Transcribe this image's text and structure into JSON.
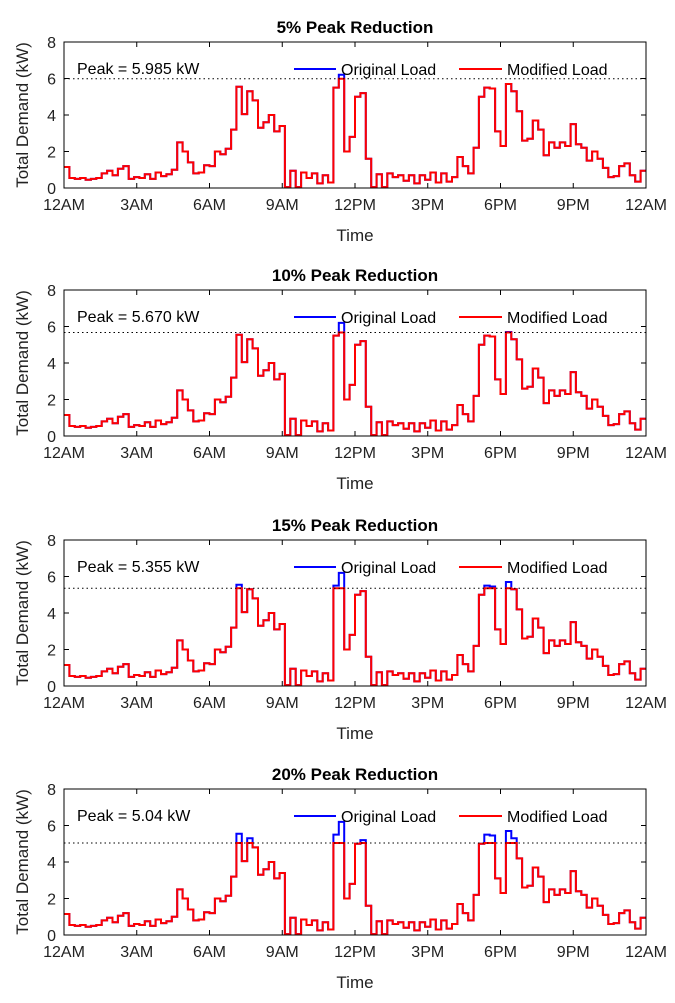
{
  "chart_data": [
    {
      "type": "line",
      "title": "5% Peak Reduction",
      "xlabel": "Time",
      "ylabel": "Total Demand (kW)",
      "xticks": [
        "12AM",
        "3AM",
        "6AM",
        "9AM",
        "12PM",
        "3PM",
        "6PM",
        "9PM",
        "12AM"
      ],
      "yticks": [
        0,
        2,
        4,
        6,
        8
      ],
      "ylim": [
        0,
        8
      ],
      "grid": false,
      "legend_position": "top-right",
      "series": [
        {
          "name": "Original Load",
          "color": "#0000ff"
        },
        {
          "name": "Modified Load",
          "color": "#ff0000"
        }
      ],
      "peak_line": 5.985,
      "annotation": "Peak = 5.985 kW"
    },
    {
      "type": "line",
      "title": "10% Peak Reduction",
      "xlabel": "Time",
      "ylabel": "Total Demand (kW)",
      "xticks": [
        "12AM",
        "3AM",
        "6AM",
        "9AM",
        "12PM",
        "3PM",
        "6PM",
        "9PM",
        "12AM"
      ],
      "yticks": [
        0,
        2,
        4,
        6,
        8
      ],
      "ylim": [
        0,
        8
      ],
      "grid": false,
      "legend_position": "top-right",
      "series": [
        {
          "name": "Original Load",
          "color": "#0000ff"
        },
        {
          "name": "Modified Load",
          "color": "#ff0000"
        }
      ],
      "peak_line": 5.67,
      "annotation": "Peak = 5.670 kW"
    },
    {
      "type": "line",
      "title": "15% Peak Reduction",
      "xlabel": "Time",
      "ylabel": "Total Demand (kW)",
      "xticks": [
        "12AM",
        "3AM",
        "6AM",
        "9AM",
        "12PM",
        "3PM",
        "6PM",
        "9PM",
        "12AM"
      ],
      "yticks": [
        0,
        2,
        4,
        6,
        8
      ],
      "ylim": [
        0,
        8
      ],
      "grid": false,
      "legend_position": "top-right",
      "series": [
        {
          "name": "Original Load",
          "color": "#0000ff"
        },
        {
          "name": "Modified Load",
          "color": "#ff0000"
        }
      ],
      "peak_line": 5.355,
      "annotation": "Peak = 5.355 kW"
    },
    {
      "type": "line",
      "title": "20% Peak Reduction",
      "xlabel": "Time",
      "ylabel": "Total Demand (kW)",
      "xticks": [
        "12AM",
        "3AM",
        "6AM",
        "9AM",
        "12PM",
        "3PM",
        "6PM",
        "9PM",
        "12AM"
      ],
      "yticks": [
        0,
        2,
        4,
        6,
        8
      ],
      "ylim": [
        0,
        8
      ],
      "grid": false,
      "legend_position": "top-right",
      "series": [
        {
          "name": "Original Load",
          "color": "#0000ff"
        },
        {
          "name": "Modified Load",
          "color": "#ff0000"
        }
      ],
      "peak_line": 5.04,
      "annotation": "Peak = 5.04 kW"
    }
  ],
  "original_load_24h_15min": [
    1.15,
    0.55,
    0.5,
    0.55,
    0.45,
    0.5,
    0.55,
    0.8,
    0.95,
    0.7,
    1.05,
    1.2,
    0.5,
    0.6,
    0.55,
    0.75,
    0.5,
    0.85,
    0.65,
    0.75,
    1.0,
    2.5,
    2.0,
    1.4,
    0.8,
    0.85,
    1.25,
    1.2,
    2.0,
    1.85,
    2.15,
    3.2,
    5.55,
    4.05,
    5.3,
    4.8,
    3.3,
    3.6,
    4.0,
    3.1,
    3.4,
    0.05,
    0.95,
    0.05,
    0.85,
    0.55,
    0.8,
    0.25,
    0.7,
    0.3,
    5.5,
    6.2,
    2.0,
    2.8,
    5.0,
    5.2,
    1.6,
    0.05,
    0.75,
    0.05,
    0.8,
    0.6,
    0.7,
    0.4,
    0.7,
    0.25,
    0.7,
    0.45,
    0.85,
    0.3,
    0.8,
    0.35,
    0.6,
    1.7,
    1.2,
    0.8,
    2.2,
    5.0,
    5.5,
    5.45,
    3.1,
    2.3,
    5.7,
    5.3,
    4.2,
    2.6,
    2.7,
    3.7,
    3.2,
    1.8,
    2.5,
    2.2,
    2.5,
    2.3,
    3.5,
    2.4,
    2.2,
    1.5,
    2.0,
    1.6,
    1.1,
    0.6,
    0.65,
    1.2,
    1.35,
    0.7,
    0.35,
    0.95
  ]
}
